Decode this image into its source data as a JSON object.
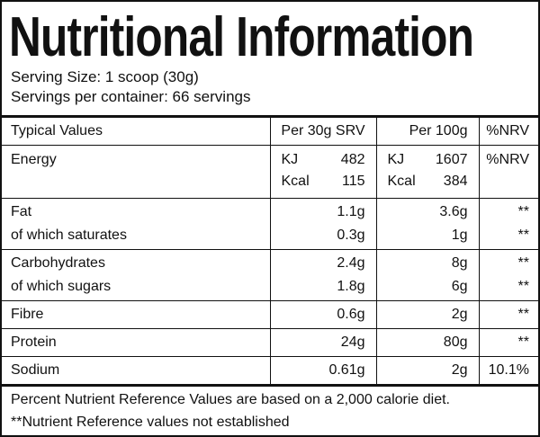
{
  "title": "Nutritional Information",
  "serving_size": "Serving Size: 1 scoop (30g)",
  "servings_per_container": "Servings per container: 66 servings",
  "table": {
    "header": [
      "Typical Values",
      "Per 30g SRV",
      "Per 100g",
      "%NRV"
    ],
    "energy": {
      "label": "Energy",
      "per_srv": [
        {
          "unit": "KJ",
          "value": 482
        },
        {
          "unit": "Kcal",
          "value": 115
        }
      ],
      "per_100g": [
        {
          "unit": "KJ",
          "value": 1607
        },
        {
          "unit": "Kcal",
          "value": 384
        }
      ],
      "nrv": "%NRV"
    },
    "groups": [
      [
        {
          "label": "Fat",
          "per_srv": "1.1g",
          "per_100g": "3.6g",
          "nrv": "**"
        },
        {
          "label": "of which saturates",
          "per_srv": "0.3g",
          "per_100g": "1g",
          "nrv": "**"
        }
      ],
      [
        {
          "label": "Carbohydrates",
          "per_srv": "2.4g",
          "per_100g": "8g",
          "nrv": "**"
        },
        {
          "label": "of which sugars",
          "per_srv": "1.8g",
          "per_100g": "6g",
          "nrv": "**"
        }
      ],
      [
        {
          "label": "Fibre",
          "per_srv": "0.6g",
          "per_100g": "2g",
          "nrv": "**"
        }
      ],
      [
        {
          "label": "Protein",
          "per_srv": "24g",
          "per_100g": "80g",
          "nrv": "**"
        }
      ],
      [
        {
          "label": "Sodium",
          "per_srv": "0.61g",
          "per_100g": "2g",
          "nrv": "10.1%"
        }
      ]
    ]
  },
  "footnotes": [
    "Percent Nutrient Reference Values are based on a 2,000 calorie diet.",
    "**Nutrient Reference values not established"
  ]
}
